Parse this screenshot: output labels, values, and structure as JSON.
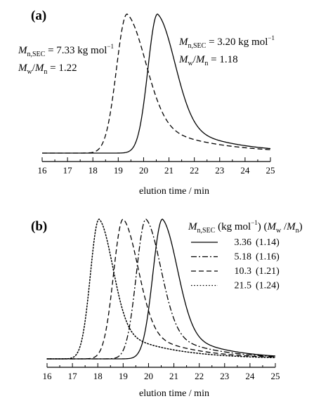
{
  "panels": [
    {
      "label": "(a)",
      "xlabel": "elution time / min",
      "annotations": [
        {
          "m": "M",
          "msub": "n,SEC",
          "value": " = 7.33 kg mol",
          "sup": "−1",
          "r1": "M",
          "r1sub": "w",
          "r2": "M",
          "r2sub": "n",
          "ratio": " = 1.22"
        },
        {
          "m": "M",
          "msub": "n,SEC",
          "value": " = 3.20 kg mol",
          "sup": "−1",
          "r1": "M",
          "r1sub": "w",
          "r2": "M",
          "r2sub": "n",
          "ratio": " = 1.18"
        }
      ]
    },
    {
      "label": "(b)",
      "xlabel": "elution time / min",
      "legend": {
        "title_m": "M",
        "title_msub": "n,SEC",
        "title_unit_a": " (kg mol",
        "title_unit_sup": "−1",
        "title_unit_b": ") (",
        "title_r1": "M",
        "title_r1sub": "w",
        "title_slash": " /",
        "title_r2": "M",
        "title_r2sub": "n",
        "title_end": ")",
        "entries": [
          {
            "mn": "3.36",
            "disp": "(1.14)"
          },
          {
            "mn": "5.18",
            "disp": "(1.16)"
          },
          {
            "mn": "10.3",
            "disp": "(1.21)"
          },
          {
            "mn": "21.5",
            "disp": "(1.24)"
          }
        ]
      }
    }
  ],
  "chart_data": [
    {
      "type": "line",
      "title": "(a)",
      "xlabel": "elution time / min",
      "ylabel": "",
      "xlim": [
        16,
        25
      ],
      "ylim": [
        0,
        1
      ],
      "xticks": [
        16,
        17,
        18,
        19,
        20,
        21,
        22,
        23,
        24,
        25
      ],
      "series": [
        {
          "name": "Mn,SEC = 7.33 kg mol−1, Mw/Mn = 1.22",
          "style": "dashed",
          "peak": 19.35,
          "sl": 0.42,
          "sr": 0.75,
          "tail": 0.32,
          "tau": 2.2
        },
        {
          "name": "Mn,SEC = 3.20 kg mol−1, Mw/Mn = 1.18",
          "style": "solid",
          "peak": 20.55,
          "sl": 0.38,
          "sr": 0.7,
          "tail": 0.3,
          "tau": 2.0
        }
      ]
    },
    {
      "type": "line",
      "title": "(b)",
      "xlabel": "elution time / min",
      "ylabel": "",
      "xlim": [
        16,
        25
      ],
      "ylim": [
        0,
        1
      ],
      "xticks": [
        16,
        17,
        18,
        19,
        20,
        21,
        22,
        23,
        24,
        25
      ],
      "series": [
        {
          "name": "3.36 (1.14)",
          "style": "solid",
          "peak": 20.55,
          "sl": 0.38,
          "sr": 0.6,
          "tail": 0.28,
          "tau": 1.7
        },
        {
          "name": "5.18 (1.16)",
          "style": "dashdot",
          "peak": 19.9,
          "sl": 0.38,
          "sr": 0.6,
          "tail": 0.28,
          "tau": 1.8
        },
        {
          "name": "10.3 (1.21)",
          "style": "dashed",
          "peak": 19.0,
          "sl": 0.38,
          "sr": 0.6,
          "tail": 0.28,
          "tau": 1.9
        },
        {
          "name": "21.5 (1.24)",
          "style": "dotted",
          "peak": 18.05,
          "sl": 0.34,
          "sr": 0.55,
          "tail": 0.28,
          "tau": 2.0
        }
      ]
    }
  ]
}
